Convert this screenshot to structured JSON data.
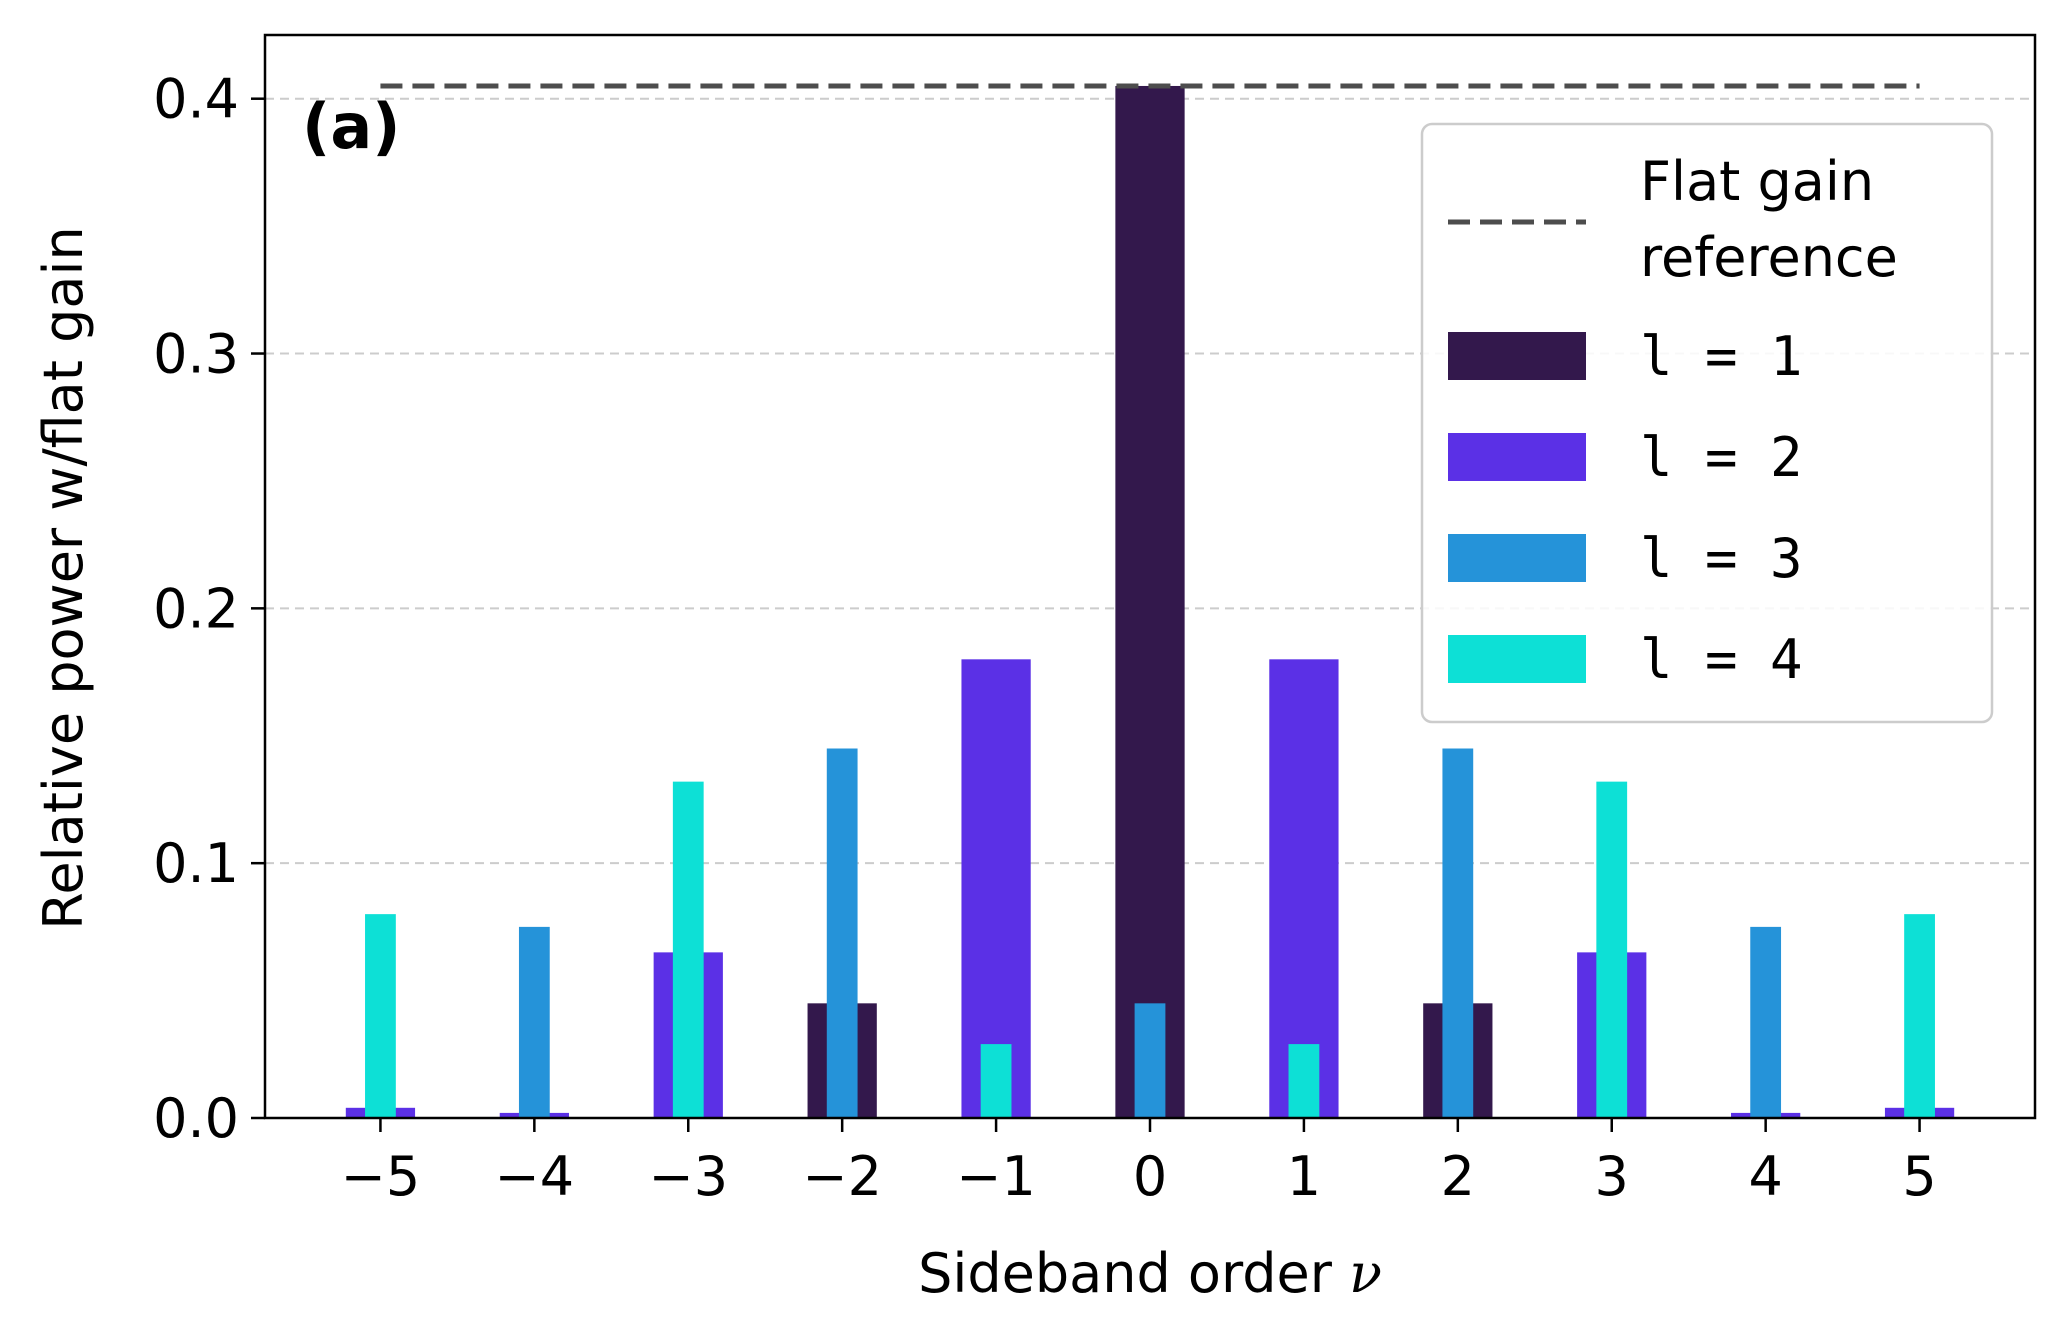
{
  "chart_data": {
    "type": "bar",
    "panel_label": "(a)",
    "xlabel_text": "Sideband order ",
    "xlabel_symbol": "ν",
    "ylabel": "Relative power w/flat gain",
    "categories": [
      "−5",
      "−4",
      "−3",
      "−2",
      "−1",
      "0",
      "1",
      "2",
      "3",
      "4",
      "5"
    ],
    "x": [
      -5,
      -4,
      -3,
      -2,
      -1,
      0,
      1,
      2,
      3,
      4,
      5
    ],
    "ylim": [
      0,
      0.425
    ],
    "yticks": [
      0.0,
      0.1,
      0.2,
      0.3,
      0.4
    ],
    "ytick_labels": [
      "0.0",
      "0.1",
      "0.2",
      "0.3",
      "0.4"
    ],
    "grid": "y-dashed",
    "legend_position": "upper-right",
    "reference": {
      "name_line1": "Flat gain",
      "name_line2": "reference",
      "value": 0.405,
      "x_range": [
        -5,
        5
      ],
      "color": "#4d4d4d",
      "style": "dashed"
    },
    "series": [
      {
        "name": "l = 1",
        "color": "#33184c",
        "width": 0.45,
        "values": [
          0.0,
          0.0,
          0.0,
          0.045,
          0.0,
          0.405,
          0.0,
          0.045,
          0.0,
          0.0,
          0.0
        ]
      },
      {
        "name": "l = 2",
        "color": "#5b30e6",
        "width": 0.45,
        "values": [
          0.004,
          0.002,
          0.065,
          0.0,
          0.18,
          0.0,
          0.18,
          0.0,
          0.065,
          0.002,
          0.004
        ]
      },
      {
        "name": "l = 3",
        "color": "#2593d9",
        "width": 0.2,
        "values": [
          0.0,
          0.075,
          0.0,
          0.145,
          0.0,
          0.045,
          0.0,
          0.145,
          0.0,
          0.075,
          0.0
        ]
      },
      {
        "name": "l = 4",
        "color": "#0de0d6",
        "width": 0.2,
        "values": [
          0.08,
          0.0,
          0.132,
          0.0,
          0.029,
          0.0,
          0.029,
          0.0,
          0.132,
          0.0,
          0.08
        ]
      }
    ]
  }
}
